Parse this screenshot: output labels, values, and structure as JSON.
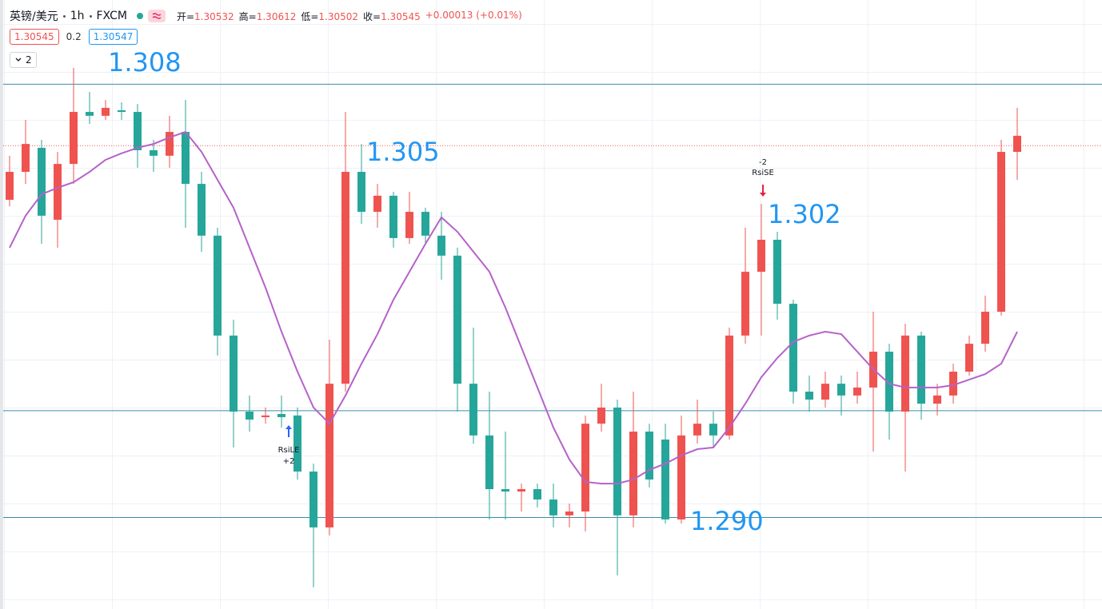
{
  "header": {
    "symbol": "英镑/美元",
    "interval": "1h",
    "source": "FXCM",
    "ohlc": [
      {
        "label": "开=",
        "value": 1.30532
      },
      {
        "label": "高=",
        "value": 1.30612
      },
      {
        "label": "低=",
        "value": 1.30502
      },
      {
        "label": "收=",
        "value": 1.30545
      }
    ],
    "change": "+0.00013 (+0.01%)",
    "sell": 1.30545,
    "spread": 0.2,
    "buy": 1.30547,
    "indicator_count": "2"
  },
  "chart_data": {
    "type": "candlestick",
    "ylim": [
      1.2862,
      1.3115
    ],
    "up_color": "#ef5350",
    "down_color": "#26a69a",
    "open": [
      1.3032,
      1.30436,
      1.30536,
      1.30237,
      1.30469,
      1.30685,
      1.30669,
      1.30692,
      1.30685,
      1.30526,
      1.30503,
      1.30602,
      1.30386,
      1.30171,
      1.29756,
      1.2944,
      1.29417,
      1.2943,
      1.29424,
      1.29191,
      1.28959,
      1.29556,
      1.30436,
      1.3027,
      1.30337,
      1.30161,
      1.3027,
      1.30171,
      1.30088,
      1.29556,
      1.29341,
      1.29118,
      1.29108,
      1.29118,
      1.29075,
      1.29009,
      1.29025,
      1.2939,
      1.29457,
      1.29009,
      1.29357,
      1.29324,
      1.28992,
      1.29341,
      1.2939,
      1.29341,
      1.29756,
      1.30021,
      1.30154,
      1.29888,
      1.29523,
      1.2949,
      1.29556,
      1.29507,
      1.2954,
      1.29689,
      1.2944,
      1.29756,
      1.29473,
      1.29507,
      1.29606,
      1.29722,
      1.29855,
      1.30519
    ],
    "high": [
      1.30503,
      1.30652,
      1.30569,
      1.30519,
      1.30868,
      1.30768,
      1.30735,
      1.30725,
      1.30718,
      1.30569,
      1.30669,
      1.30735,
      1.30436,
      1.30204,
      1.29822,
      1.29507,
      1.29457,
      1.29507,
      1.29457,
      1.29224,
      1.29739,
      1.30685,
      1.30552,
      1.30386,
      1.30353,
      1.30353,
      1.30287,
      1.3027,
      1.30121,
      1.29789,
      1.29523,
      1.29357,
      1.29141,
      1.29141,
      1.29141,
      1.29058,
      1.29424,
      1.29556,
      1.2949,
      1.29523,
      1.2939,
      1.2939,
      1.29424,
      1.2949,
      1.2944,
      1.29789,
      1.30204,
      1.30303,
      1.30187,
      1.29905,
      1.2959,
      1.29606,
      1.2959,
      1.29606,
      1.29855,
      1.29722,
      1.29805,
      1.29772,
      1.29556,
      1.29639,
      1.29756,
      1.29922,
      1.30569,
      1.30702
    ],
    "low": [
      1.30293,
      1.30386,
      1.30137,
      1.30121,
      1.30386,
      1.30635,
      1.30652,
      1.30652,
      1.30453,
      1.30436,
      1.30453,
      1.30204,
      1.30104,
      1.29673,
      1.29291,
      1.29357,
      1.2939,
      1.29374,
      1.29158,
      1.2871,
      1.28926,
      1.29523,
      1.3022,
      1.30204,
      1.30121,
      1.30137,
      1.30137,
      1.29988,
      1.2944,
      1.29307,
      1.28992,
      1.28992,
      1.29025,
      1.29042,
      1.28959,
      1.28959,
      1.28942,
      1.29357,
      1.2876,
      1.28959,
      1.29125,
      1.28975,
      1.28975,
      1.29307,
      1.29291,
      1.29324,
      1.29722,
      1.29756,
      1.29822,
      1.29473,
      1.2944,
      1.29457,
      1.29424,
      1.29473,
      1.29274,
      1.29324,
      1.29191,
      1.29407,
      1.29424,
      1.29473,
      1.2959,
      1.29689,
      1.29839,
      1.30403
    ],
    "close": [
      1.30436,
      1.30552,
      1.30254,
      1.30469,
      1.30685,
      1.30669,
      1.30702,
      1.30685,
      1.30526,
      1.30503,
      1.30602,
      1.30386,
      1.30171,
      1.29756,
      1.2944,
      1.29407,
      1.29424,
      1.29417,
      1.29191,
      1.28959,
      1.29556,
      1.30436,
      1.3027,
      1.30337,
      1.30161,
      1.3027,
      1.30171,
      1.30088,
      1.29556,
      1.29341,
      1.29118,
      1.29108,
      1.29118,
      1.29075,
      1.29009,
      1.29025,
      1.2939,
      1.29457,
      1.29009,
      1.29357,
      1.29158,
      1.28992,
      1.29341,
      1.2939,
      1.29341,
      1.29756,
      1.30021,
      1.30154,
      1.29888,
      1.29523,
      1.2949,
      1.29556,
      1.29507,
      1.2954,
      1.29689,
      1.2944,
      1.29756,
      1.29473,
      1.29507,
      1.29606,
      1.29722,
      1.29855,
      1.30519,
      1.30586
    ],
    "ma": {
      "color": "#b562c9",
      "values": [
        1.30121,
        1.30254,
        1.30343,
        1.3037,
        1.30393,
        1.30436,
        1.30486,
        1.30513,
        1.30536,
        1.30552,
        1.30579,
        1.30602,
        1.30519,
        1.30403,
        1.30287,
        1.30121,
        1.29955,
        1.29772,
        1.29606,
        1.29457,
        1.2939,
        1.29507,
        1.29639,
        1.29762,
        1.29905,
        1.30021,
        1.30137,
        1.30247,
        1.30187,
        1.30104,
        1.30021,
        1.29872,
        1.29706,
        1.2954,
        1.29374,
        1.29241,
        1.29148,
        1.29141,
        1.29141,
        1.29158,
        1.29198,
        1.29224,
        1.29258,
        1.29284,
        1.29291,
        1.29374,
        1.29473,
        1.29583,
        1.29663,
        1.2973,
        1.29756,
        1.29772,
        1.29762,
        1.29689,
        1.29616,
        1.29556,
        1.2954,
        1.2954,
        1.2954,
        1.2955,
        1.29573,
        1.29596,
        1.29639,
        1.29772
      ]
    },
    "hlines": {
      "color": "#3a8fa3",
      "values": [
        1.308,
        1.29444,
        1.29
      ]
    },
    "annotations": [
      {
        "text": "1.308"
      },
      {
        "text": "1.305"
      },
      {
        "text": "1.302"
      },
      {
        "text": "1.290"
      }
    ],
    "signals": [
      {
        "lines": [
          "RsiLE",
          "+2"
        ],
        "color": "#2962ff"
      },
      {
        "lines": [
          "-2",
          "RsiSE"
        ],
        "color": "#e91e43"
      }
    ]
  }
}
